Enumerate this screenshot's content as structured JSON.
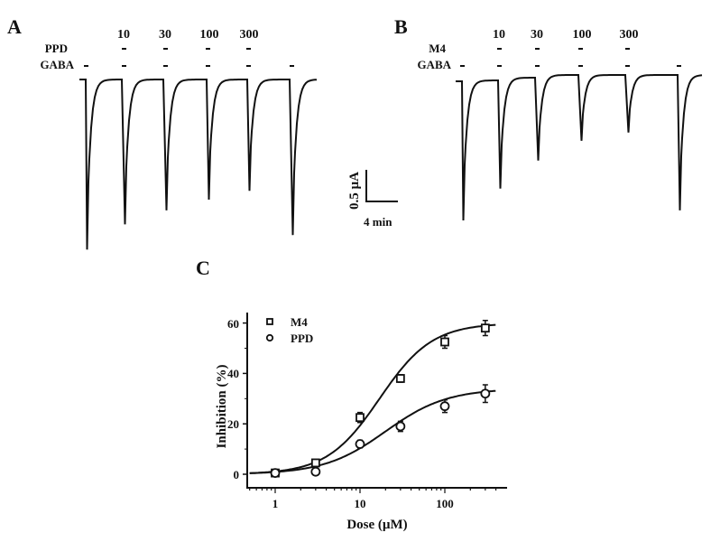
{
  "panels": {
    "A": {
      "letter": "A",
      "drug": "PPD",
      "gaba": "GABA",
      "doses": [
        "10",
        "30",
        "100",
        "300"
      ]
    },
    "B": {
      "letter": "B",
      "drug": "M4",
      "gaba": "GABA",
      "doses": [
        "10",
        "30",
        "100",
        "300"
      ]
    },
    "C": {
      "letter": "C"
    }
  },
  "scale_bar": {
    "current": "0.5 µA",
    "time": "4 min"
  },
  "traces": {
    "A_peak_uA": [
      2.69,
      2.29,
      2.07,
      1.9,
      1.76,
      2.46
    ],
    "B_peak_uA": [
      2.2,
      1.71,
      1.31,
      1.04,
      0.91,
      2.14
    ]
  },
  "chart_data": {
    "type": "scatter",
    "title": "",
    "xlabel": "Dose (µM)",
    "ylabel": "Inhibition (%)",
    "xscale": "log",
    "xlim": [
      0.5,
      450
    ],
    "ylim": [
      -5,
      70
    ],
    "xticks": [
      "1",
      "10",
      "100"
    ],
    "yticks": [
      "0",
      "20",
      "40",
      "60"
    ],
    "legend_position": "top-left",
    "x": [
      1,
      3,
      10,
      30,
      100,
      300
    ],
    "series": [
      {
        "name": "M4",
        "marker": "square",
        "values": [
          0.5,
          4.5,
          22.5,
          38,
          52.5,
          58
        ],
        "errors": [
          0.5,
          1,
          2,
          1.5,
          2.5,
          3
        ]
      },
      {
        "name": "PPD",
        "marker": "circle",
        "values": [
          0.5,
          1,
          12,
          19,
          27,
          32
        ],
        "errors": [
          0.5,
          1,
          1.5,
          2,
          2.5,
          3.5
        ]
      }
    ],
    "fits": [
      {
        "name": "M4",
        "max": 60,
        "ec50": 17,
        "hill": 1.4
      },
      {
        "name": "PPD",
        "max": 34,
        "ec50": 20,
        "hill": 1.2
      }
    ]
  }
}
